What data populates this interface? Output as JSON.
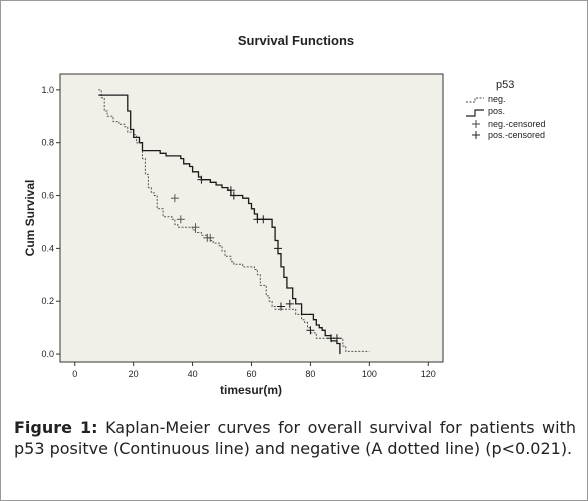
{
  "caption": {
    "label": "Figure 1:",
    "text": "Kaplan-Meier curves for overall survival for patients with p53 positve (Continuous line) and negative (A dotted line) (p<0.021)."
  },
  "chart_data": {
    "type": "line",
    "step": true,
    "title": "Survival Functions",
    "xlabel": "timesur(m)",
    "ylabel": "Cum Survival",
    "xlim": [
      -5,
      125
    ],
    "ylim": [
      -0.03,
      1.06
    ],
    "xticks": [
      0,
      20,
      40,
      60,
      80,
      100,
      120
    ],
    "yticks": [
      0.0,
      0.2,
      0.4,
      0.6,
      0.8,
      1.0
    ],
    "ytick_labels": [
      "0.0",
      "0.2",
      "0.4",
      "0.6",
      "0.8",
      "1.0"
    ],
    "grid": false,
    "legend": {
      "title": "p53",
      "placement": "right",
      "entries": [
        "neg.",
        "pos.",
        "neg.-censored",
        "pos.-censored"
      ]
    },
    "series": [
      {
        "name": "neg.",
        "style": "dotted",
        "points": [
          [
            8,
            1.0
          ],
          [
            9,
            0.97
          ],
          [
            10,
            0.92
          ],
          [
            11,
            0.9
          ],
          [
            13,
            0.88
          ],
          [
            15,
            0.87
          ],
          [
            17,
            0.86
          ],
          [
            18,
            0.84
          ],
          [
            20,
            0.83
          ],
          [
            21,
            0.8
          ],
          [
            23,
            0.74
          ],
          [
            24,
            0.68
          ],
          [
            25,
            0.63
          ],
          [
            26,
            0.61
          ],
          [
            27,
            0.6
          ],
          [
            28,
            0.55
          ],
          [
            30,
            0.52
          ],
          [
            31,
            0.52
          ],
          [
            33,
            0.51
          ],
          [
            34,
            0.49
          ],
          [
            35,
            0.48
          ],
          [
            37,
            0.48
          ],
          [
            40,
            0.47
          ],
          [
            41,
            0.46
          ],
          [
            43,
            0.45
          ],
          [
            45,
            0.44
          ],
          [
            46,
            0.43
          ],
          [
            47,
            0.42
          ],
          [
            49,
            0.41
          ],
          [
            50,
            0.39
          ],
          [
            51,
            0.37
          ],
          [
            53,
            0.35
          ],
          [
            54,
            0.34
          ],
          [
            55,
            0.34
          ],
          [
            57,
            0.33
          ],
          [
            60,
            0.33
          ],
          [
            61,
            0.32
          ],
          [
            62,
            0.3
          ],
          [
            63,
            0.26
          ],
          [
            65,
            0.22
          ],
          [
            66,
            0.2
          ],
          [
            67,
            0.18
          ],
          [
            68,
            0.17
          ],
          [
            72,
            0.17
          ],
          [
            75,
            0.15
          ],
          [
            77,
            0.13
          ],
          [
            78,
            0.12
          ],
          [
            79,
            0.1
          ],
          [
            80,
            0.08
          ],
          [
            82,
            0.06
          ],
          [
            90,
            0.06
          ],
          [
            91,
            0.03
          ],
          [
            92,
            0.01
          ],
          [
            100,
            0.01
          ]
        ],
        "censored": [
          [
            34,
            0.59
          ],
          [
            36,
            0.51
          ],
          [
            41,
            0.48
          ],
          [
            45,
            0.44
          ],
          [
            46,
            0.44
          ]
        ]
      },
      {
        "name": "pos.",
        "style": "solid",
        "points": [
          [
            8,
            0.98
          ],
          [
            9,
            0.98
          ],
          [
            17,
            0.98
          ],
          [
            18,
            0.92
          ],
          [
            19,
            0.85
          ],
          [
            20,
            0.82
          ],
          [
            22,
            0.8
          ],
          [
            23,
            0.77
          ],
          [
            29,
            0.76
          ],
          [
            31,
            0.75
          ],
          [
            36,
            0.74
          ],
          [
            37,
            0.72
          ],
          [
            39,
            0.71
          ],
          [
            40,
            0.69
          ],
          [
            42,
            0.67
          ],
          [
            43,
            0.66
          ],
          [
            46,
            0.65
          ],
          [
            48,
            0.64
          ],
          [
            50,
            0.63
          ],
          [
            52,
            0.62
          ],
          [
            53,
            0.6
          ],
          [
            57,
            0.59
          ],
          [
            59,
            0.57
          ],
          [
            60,
            0.55
          ],
          [
            61,
            0.53
          ],
          [
            62,
            0.51
          ],
          [
            66,
            0.51
          ],
          [
            67,
            0.48
          ],
          [
            68,
            0.43
          ],
          [
            69,
            0.38
          ],
          [
            70,
            0.33
          ],
          [
            71,
            0.29
          ],
          [
            72,
            0.25
          ],
          [
            74,
            0.21
          ],
          [
            75,
            0.19
          ],
          [
            77,
            0.15
          ],
          [
            80,
            0.15
          ],
          [
            81,
            0.13
          ],
          [
            82,
            0.11
          ],
          [
            83,
            0.1
          ],
          [
            84,
            0.09
          ],
          [
            85,
            0.07
          ],
          [
            87,
            0.05
          ],
          [
            88,
            0.05
          ],
          [
            89,
            0.04
          ],
          [
            90,
            0.0
          ]
        ],
        "censored": [
          [
            43,
            0.66
          ],
          [
            53,
            0.62
          ],
          [
            54,
            0.6
          ],
          [
            62,
            0.51
          ],
          [
            64,
            0.51
          ],
          [
            69,
            0.4
          ],
          [
            70,
            0.18
          ],
          [
            73,
            0.19
          ],
          [
            80,
            0.09
          ],
          [
            87,
            0.06
          ],
          [
            89,
            0.06
          ]
        ]
      }
    ]
  }
}
